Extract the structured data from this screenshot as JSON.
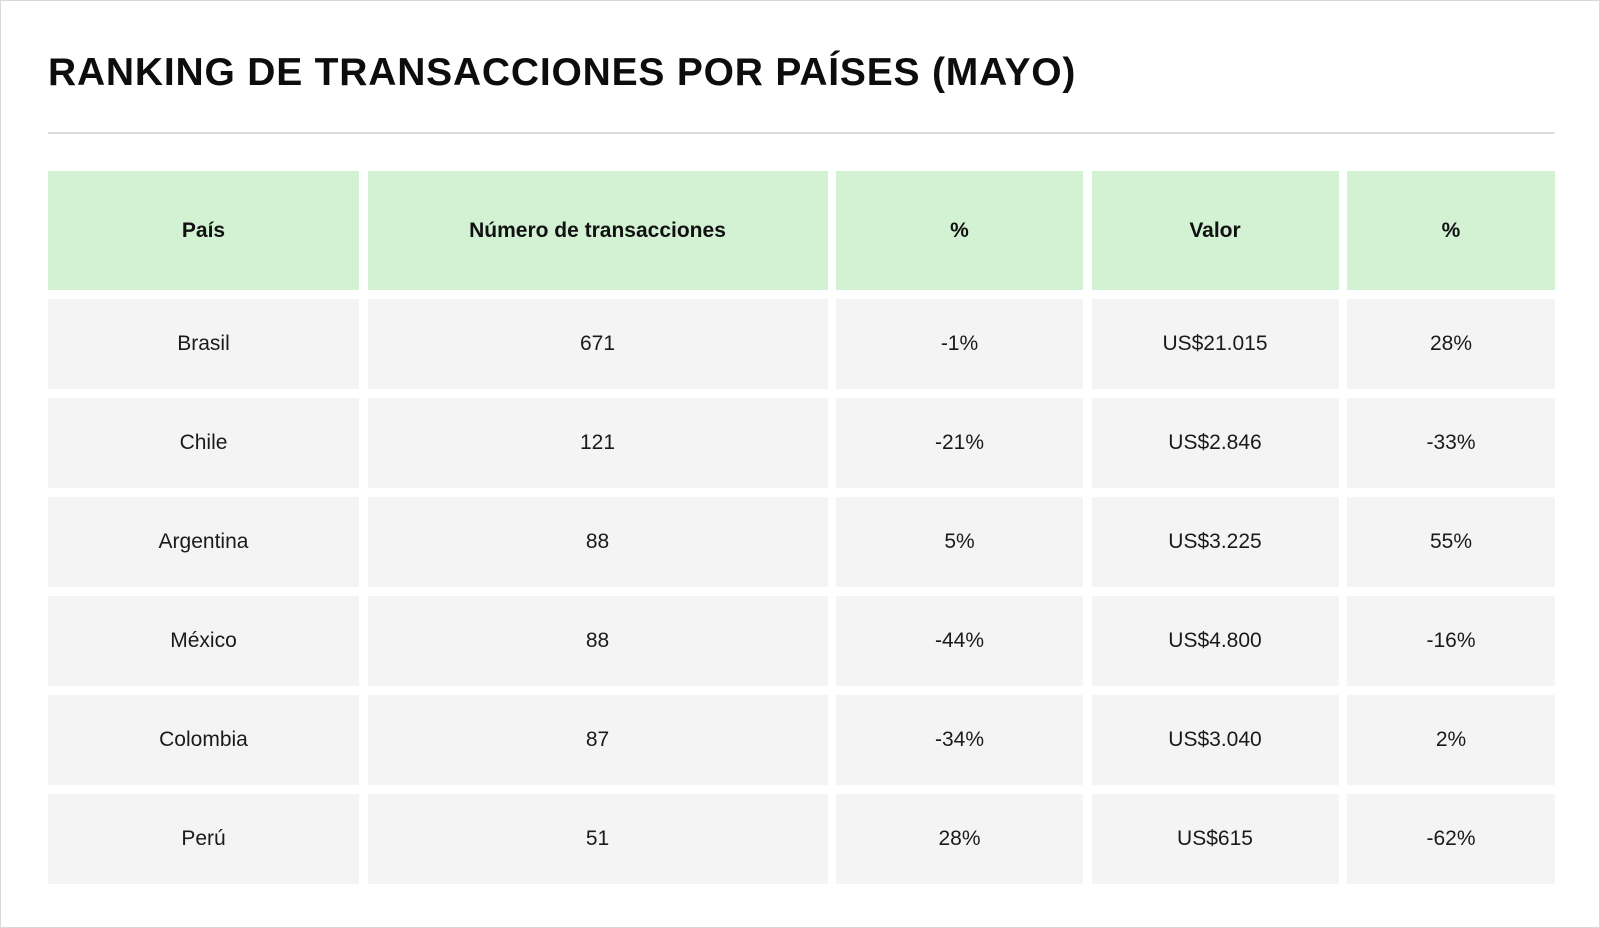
{
  "title": "RANKING DE TRANSACCIONES POR PAÍSES (MAYO)",
  "table": {
    "headers": [
      "País",
      "Número de transacciones",
      "%",
      "Valor",
      "%"
    ],
    "rows": [
      [
        "Brasil",
        "671",
        "-1%",
        "US$21.015",
        "28%"
      ],
      [
        "Chile",
        "121",
        "-21%",
        "US$2.846",
        "-33%"
      ],
      [
        "Argentina",
        "88",
        "5%",
        "US$3.225",
        "55%"
      ],
      [
        "México",
        "88",
        "-44%",
        "US$4.800",
        "-16%"
      ],
      [
        "Colombia",
        "87",
        "-34%",
        "US$3.040",
        "2%"
      ],
      [
        "Perú",
        "51",
        "28%",
        "US$615",
        "-62%"
      ]
    ]
  },
  "colors": {
    "header_bg": "#d3f2d4",
    "cell_bg": "#f4f4f4",
    "divider": "#dedede",
    "frame_border": "#d9d9d9"
  }
}
